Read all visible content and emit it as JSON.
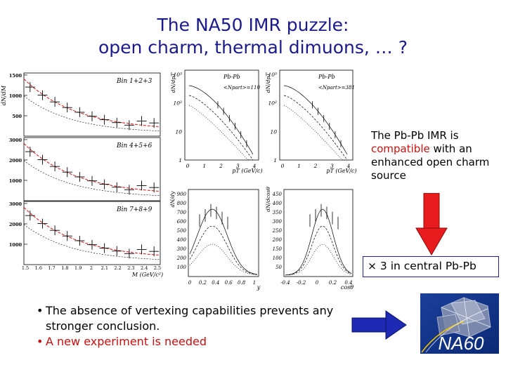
{
  "slide": {
    "title_line1": "The NA50 IMR puzzle:",
    "title_line2": "open charm, thermal dimuons, … ?",
    "side_text_prefix": "The Pb-Pb IMR is ",
    "side_text_highlight": "compatible",
    "side_text_suffix": " with an enhanced open charm source",
    "factor_symbol": "×",
    "factor_text": " 3 in central Pb-Pb",
    "bullets": [
      "The absence of vertexing capabilities prevents any stronger conclusion.",
      "A new experiment is needed"
    ],
    "bullet_marker": "•",
    "logo_text": "NA60",
    "colors": {
      "title": "#1a1a8c",
      "highlight": "#d01010",
      "arrow_red": "#e81c1c",
      "arrow_blue": "#1e2ab4"
    }
  },
  "chart_data": [
    {
      "type": "scatter",
      "panels": [
        {
          "label": "Bin 1+2+3",
          "ytick_labels": [
            "500",
            "1000",
            "1500"
          ]
        },
        {
          "label": "Bin 4+5+6",
          "ytick_labels": [
            "1000",
            "2000",
            "3000"
          ]
        },
        {
          "label": "Bin 7+8+9",
          "ytick_labels": [
            "1000",
            "2000",
            "3000"
          ]
        }
      ],
      "ylabel": "dN/dM",
      "xlabel": "M (GeV/c²)",
      "xtick_labels": [
        "1.5",
        "1.6",
        "1.7",
        "1.8",
        "1.9",
        "2",
        "2.1",
        "2.2",
        "2.3",
        "2.4",
        "2.5"
      ]
    },
    {
      "type": "line",
      "panels": [
        {
          "title": "Pb-Pb",
          "annotation": "<Npart>=110",
          "ylabel": "dN/dpT",
          "xlabel": "pT (GeV/c)",
          "ytick_labels": [
            "1",
            "10",
            "10²",
            "10³"
          ],
          "xtick_labels": [
            "0",
            "1",
            "2",
            "3",
            "4"
          ]
        },
        {
          "title": "Pb-Pb",
          "annotation": "<Npart>=381",
          "ylabel": "dN/dpT",
          "xlabel": "pT (GeV/c)",
          "ytick_labels": [
            "1",
            "10",
            "10²",
            "10³"
          ],
          "xtick_labels": [
            "0",
            "1",
            "2",
            "3",
            "4"
          ]
        }
      ]
    },
    {
      "type": "line",
      "panels": [
        {
          "ylabel": "dN/dy",
          "xlabel": "y",
          "ytick_labels": [
            "100",
            "200",
            "300",
            "400",
            "500",
            "600",
            "700",
            "800",
            "900"
          ],
          "xtick_labels": [
            "0",
            "0.2",
            "0.4",
            "0.6",
            "0.8",
            "1"
          ]
        },
        {
          "ylabel": "dN/dcosθ",
          "xlabel": "cosθ",
          "ytick_labels": [
            "50",
            "100",
            "150",
            "200",
            "250",
            "300",
            "350",
            "400",
            "450"
          ],
          "xtick_labels": [
            "-0.4",
            "-0.2",
            "0",
            "0.2",
            "0.4"
          ]
        }
      ]
    }
  ]
}
